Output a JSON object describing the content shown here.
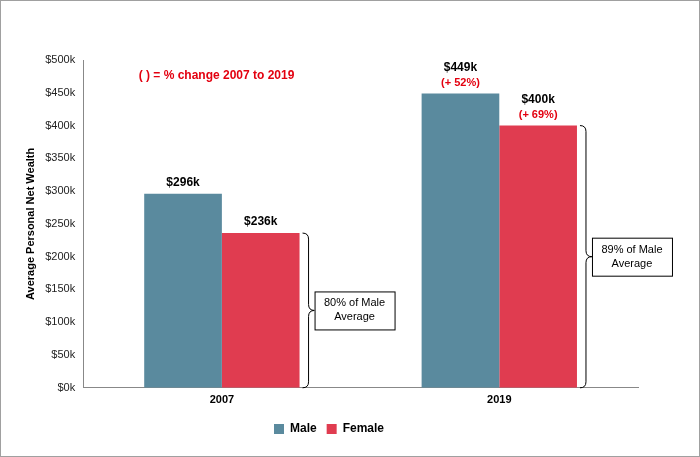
{
  "chart_data": {
    "type": "bar",
    "y_label": "Average Personal Net Wealth",
    "note": "( ) = % change 2007 to 2019",
    "categories": [
      "2007",
      "2019"
    ],
    "series": [
      {
        "name": "Male",
        "color": "#5a8a9e",
        "values": [
          296,
          449
        ],
        "value_labels": [
          "$296k",
          "$449k"
        ],
        "change_labels": [
          null,
          "(+ 52%)"
        ]
      },
      {
        "name": "Female",
        "color": "#e03c50",
        "values": [
          236,
          400
        ],
        "value_labels": [
          "$236k",
          "$400k"
        ],
        "change_labels": [
          null,
          "(+ 69%)"
        ]
      }
    ],
    "ratio_labels": [
      "80% of Male Average",
      "89% of Male Average"
    ],
    "ylim": [
      0,
      500
    ],
    "yticks": [
      {
        "value": 0,
        "label": "$0k"
      },
      {
        "value": 50,
        "label": "$50k"
      },
      {
        "value": 100,
        "label": "$100k"
      },
      {
        "value": 150,
        "label": "$150k"
      },
      {
        "value": 200,
        "label": "$200k"
      },
      {
        "value": 250,
        "label": "$250k"
      },
      {
        "value": 300,
        "label": "$300k"
      },
      {
        "value": 350,
        "label": "$350k"
      },
      {
        "value": 400,
        "label": "$400k"
      },
      {
        "value": 450,
        "label": "$450k"
      },
      {
        "value": 500,
        "label": "$500k"
      }
    ],
    "grid": false,
    "legend": "bottom",
    "data_labels": true
  }
}
